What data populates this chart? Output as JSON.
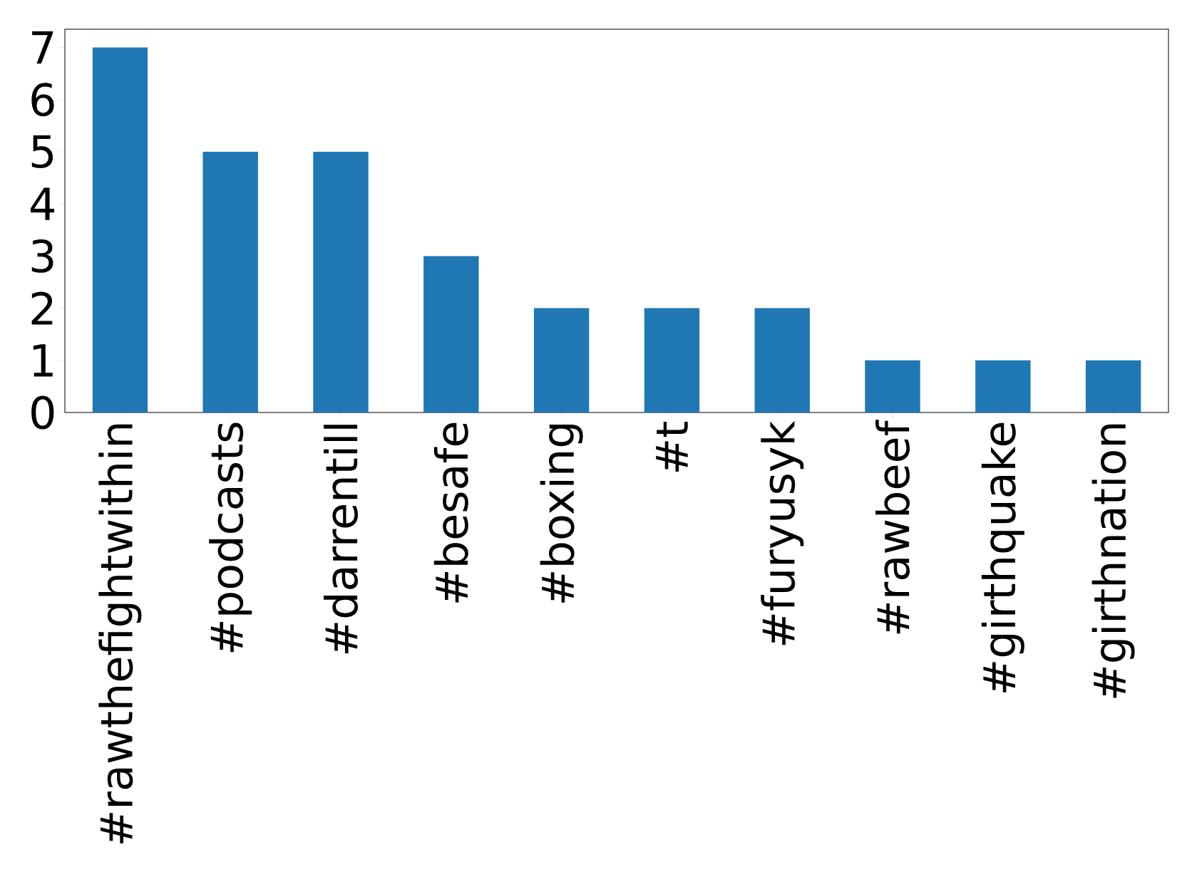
{
  "chart_data": {
    "type": "bar",
    "categories": [
      "#rawthefightwithin",
      "#podcasts",
      "#darrentill",
      "#besafe",
      "#boxing",
      "#t",
      "#furyusyk",
      "#rawbeef",
      "#girthquake",
      "#girthnation"
    ],
    "values": [
      7,
      5,
      5,
      3,
      2,
      2,
      2,
      1,
      1,
      1
    ],
    "color": "#1f77b4",
    "ylim": [
      0,
      7.35
    ],
    "yticks": [
      0,
      1,
      2,
      3,
      4,
      5,
      6,
      7
    ]
  }
}
